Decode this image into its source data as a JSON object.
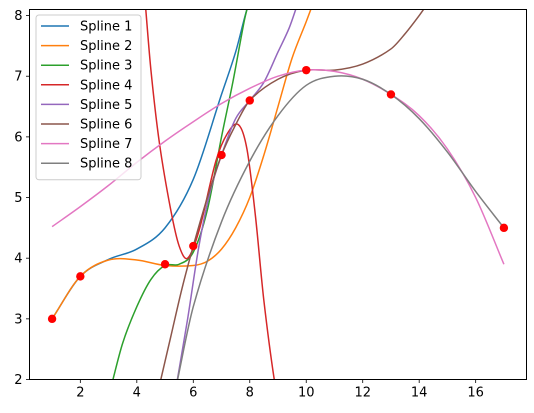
{
  "chart_data": {
    "type": "line",
    "title": "",
    "xlabel": "",
    "ylabel": "",
    "xlim": [
      0.2,
      17.8
    ],
    "ylim": [
      2.0,
      8.1
    ],
    "xticks": [
      2,
      4,
      6,
      8,
      10,
      12,
      14,
      16
    ],
    "yticks": [
      2,
      3,
      4,
      5,
      6,
      7,
      8
    ],
    "grid": false,
    "legend_position": "top-left",
    "points": {
      "x": [
        1,
        2,
        5,
        6,
        7,
        8,
        10,
        13,
        17
      ],
      "y": [
        3.0,
        3.7,
        3.9,
        4.2,
        5.7,
        6.6,
        7.1,
        6.7,
        4.5
      ],
      "color": "#ff0000"
    },
    "series": [
      {
        "name": "Spline 1",
        "color": "#1f77b4",
        "x": [
          1,
          2,
          3,
          4,
          5,
          6,
          7,
          7.5,
          7.9,
          8.3
        ],
        "y": [
          3.0,
          3.7,
          3.98,
          4.15,
          4.5,
          5.3,
          6.7,
          7.4,
          8.1,
          8.6
        ]
      },
      {
        "name": "Spline 2",
        "color": "#ff7f0e",
        "x": [
          1,
          2,
          3,
          4,
          5,
          6,
          6.5,
          7,
          7.5,
          8,
          8.5,
          9,
          9.5,
          10,
          10.2
        ],
        "y": [
          3.0,
          3.7,
          3.97,
          3.97,
          3.88,
          3.88,
          3.95,
          4.15,
          4.5,
          5.0,
          5.7,
          6.5,
          7.3,
          7.9,
          8.15
        ]
      },
      {
        "name": "Spline 3",
        "color": "#2ca02c",
        "x": [
          3.1,
          3.5,
          4,
          4.5,
          5,
          5.5,
          6,
          6.5,
          7,
          7.4,
          7.8,
          7.95
        ],
        "y": [
          1.9,
          2.6,
          3.2,
          3.65,
          3.88,
          3.9,
          4.1,
          4.8,
          6.0,
          6.9,
          7.9,
          8.2
        ]
      },
      {
        "name": "Spline 4",
        "color": "#d62728",
        "x": [
          4.3,
          4.5,
          4.8,
          5.2,
          5.5,
          5.8,
          6.2,
          6.8,
          7.2,
          7.6,
          7.9,
          8.2,
          8.5,
          8.9,
          9.1
        ],
        "y": [
          8.2,
          7.1,
          5.9,
          4.8,
          4.2,
          4.0,
          4.45,
          5.6,
          6.05,
          6.2,
          5.8,
          4.7,
          3.3,
          1.9,
          1.5
        ]
      },
      {
        "name": "Spline 5",
        "color": "#9467bd",
        "x": [
          5.4,
          5.8,
          6.2,
          6.6,
          7,
          7.5,
          8,
          8.5,
          9,
          9.4,
          9.7
        ],
        "y": [
          1.9,
          3.0,
          4.2,
          5.1,
          5.7,
          6.3,
          6.6,
          6.9,
          7.4,
          7.8,
          8.2
        ]
      },
      {
        "name": "Spline 6",
        "color": "#8c564b",
        "x": [
          4.8,
          5.2,
          5.6,
          6,
          6.5,
          7,
          7.5,
          8,
          9,
          10,
          11,
          12,
          13,
          13.5,
          14,
          14.3
        ],
        "y": [
          1.9,
          2.7,
          3.5,
          4.2,
          5.0,
          5.7,
          6.2,
          6.6,
          6.95,
          7.1,
          7.1,
          7.2,
          7.45,
          7.7,
          8.0,
          8.2
        ]
      },
      {
        "name": "Spline 7",
        "color": "#e377c2",
        "x": [
          1,
          2,
          3,
          4,
          5,
          6,
          7,
          8,
          9,
          10,
          11,
          12,
          13,
          14,
          15,
          16,
          17
        ],
        "y": [
          4.52,
          4.85,
          5.2,
          5.58,
          5.93,
          6.25,
          6.55,
          6.8,
          7.0,
          7.1,
          7.08,
          6.95,
          6.7,
          6.35,
          5.8,
          5.0,
          3.9
        ]
      },
      {
        "name": "Spline 8",
        "color": "#7f7f7f",
        "x": [
          5.4,
          6,
          7,
          8,
          9,
          10,
          11,
          12,
          13,
          14,
          15,
          16,
          17
        ],
        "y": [
          1.9,
          3.2,
          4.6,
          5.6,
          6.35,
          6.85,
          7.0,
          6.95,
          6.7,
          6.3,
          5.75,
          5.1,
          4.5
        ]
      }
    ]
  }
}
